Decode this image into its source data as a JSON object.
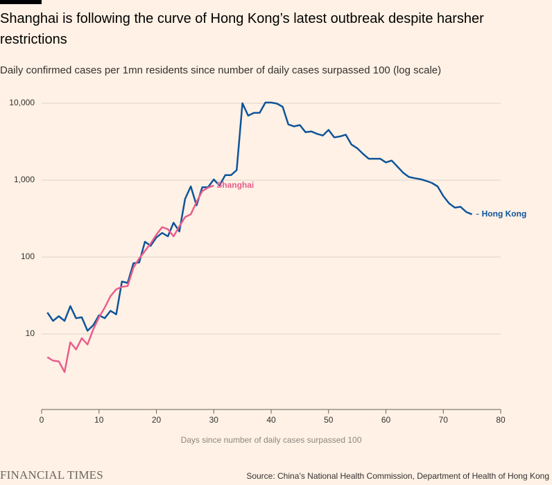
{
  "chart_data": {
    "type": "line",
    "title": "Shanghai is following the curve of Hong Kong’s latest outbreak despite harsher restrictions",
    "subtitle": "Daily confirmed cases per 1mn residents since number of daily cases surpassed 100 (log scale)",
    "x_label": "Days since number of daily cases surpassed 100",
    "source": "Source: China’s National Health Commission, Department of Health of Hong Kong",
    "publisher": "FINANCIAL TIMES",
    "yscale": "log",
    "grid": true,
    "xlim": [
      0,
      80
    ],
    "xticks": [
      0,
      10,
      20,
      30,
      40,
      50,
      60,
      70,
      80
    ],
    "ylim": [
      1,
      10000
    ],
    "yticks": [
      10,
      100,
      {
        "value": 1000,
        "label": "1,000"
      },
      {
        "value": 10000,
        "label": "10,000"
      }
    ],
    "series": [
      {
        "name": "Hong Kong",
        "color": "#0f5499",
        "x": [
          1,
          2,
          3,
          4,
          5,
          6,
          7,
          8,
          9,
          10,
          11,
          12,
          13,
          14,
          15,
          16,
          17,
          18,
          19,
          20,
          21,
          22,
          23,
          24,
          25,
          26,
          27,
          28,
          29,
          30,
          31,
          32,
          33,
          34,
          35,
          36,
          37,
          38,
          39,
          40,
          41,
          42,
          43,
          44,
          45,
          46,
          47,
          48,
          49,
          50,
          51,
          52,
          53,
          54,
          55,
          56,
          57,
          58,
          59,
          60,
          61,
          62,
          63,
          64,
          65,
          66,
          67,
          68,
          69,
          70,
          71,
          72,
          73,
          74,
          75
        ],
        "values": [
          19,
          14.8,
          17,
          14.8,
          23,
          16,
          16.5,
          11,
          13,
          17.5,
          16,
          20,
          18,
          48,
          46,
          83,
          85,
          158,
          140,
          180,
          206,
          186,
          280,
          215,
          570,
          830,
          470,
          810,
          810,
          1020,
          850,
          1160,
          1160,
          1350,
          10000,
          6900,
          7500,
          7500,
          10200,
          10200,
          9900,
          9000,
          5300,
          5000,
          5200,
          4200,
          4300,
          4000,
          3800,
          4500,
          3600,
          3700,
          3900,
          2900,
          2600,
          2200,
          1900,
          1900,
          1900,
          1700,
          1800,
          1500,
          1250,
          1100,
          1060,
          1030,
          980,
          920,
          830,
          620,
          500,
          440,
          450,
          385,
          360
        ]
      },
      {
        "name": "Shanghai",
        "color": "#e95d8c",
        "x": [
          1,
          2,
          3,
          4,
          5,
          6,
          7,
          8,
          9,
          10,
          11,
          12,
          13,
          14,
          15,
          16,
          17,
          18,
          19,
          20,
          21,
          22,
          23,
          24,
          25,
          26,
          27,
          28,
          29,
          30
        ],
        "values": [
          5,
          4.5,
          4.4,
          3.2,
          7.8,
          6.3,
          8.8,
          7.3,
          11.5,
          16.5,
          22,
          31,
          38,
          41,
          42,
          73,
          96,
          120,
          150,
          195,
          245,
          230,
          186,
          250,
          330,
          360,
          520,
          720,
          800,
          850
        ]
      }
    ]
  }
}
